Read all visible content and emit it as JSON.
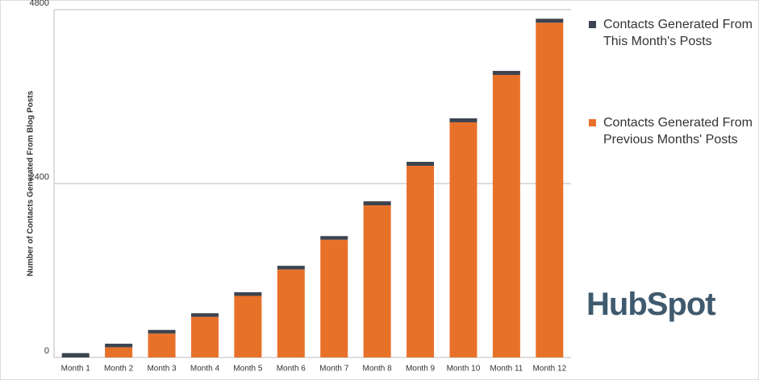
{
  "chart_data": {
    "type": "stacked_bar",
    "y_axis_label": "Number of Contacts Generated From Blog Posts",
    "categories": [
      "Month 1",
      "Month 2",
      "Month 3",
      "Month 4",
      "Month 5",
      "Month 6",
      "Month 7",
      "Month 8",
      "Month 9",
      "Month 10",
      "Month 11",
      "Month 12"
    ],
    "series": [
      {
        "name": "Contacts Generated From This Month's Posts",
        "color": "#3c4450",
        "values": [
          60,
          50,
          50,
          50,
          50,
          50,
          50,
          55,
          55,
          55,
          55,
          55
        ]
      },
      {
        "name": "Contacts Generated From Previous Months' Posts",
        "color": "#e8712a",
        "values": [
          0,
          140,
          330,
          560,
          850,
          1215,
          1625,
          2100,
          2645,
          3245,
          3900,
          4620
        ]
      }
    ],
    "ylim": [
      0,
      4800
    ],
    "yticks": [
      0,
      2400,
      4800
    ],
    "grid": true,
    "logo": "HubSpot"
  }
}
